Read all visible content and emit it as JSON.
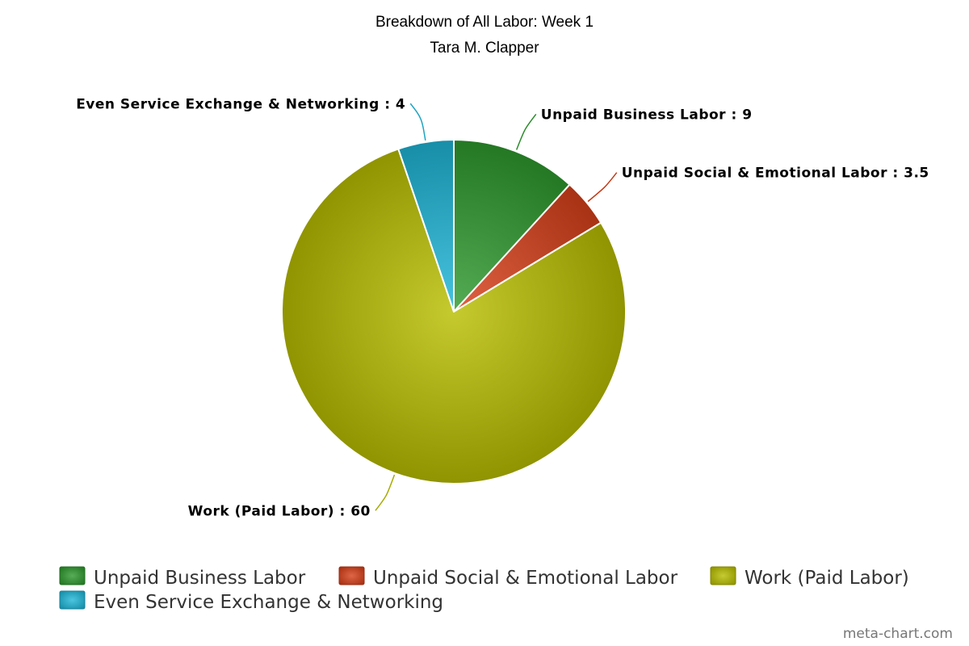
{
  "chart_data": {
    "type": "pie",
    "title": "Breakdown of All Labor: Week 1",
    "subtitle": "Tara M. Clapper",
    "label_separator": " : ",
    "slices": [
      {
        "name": "Unpaid Business Labor",
        "value": 9,
        "color": "#2e9a2e"
      },
      {
        "name": "Unpaid Social & Emotional Labor",
        "value": 3.5,
        "color": "#d8401a"
      },
      {
        "name": "Work (Paid Labor)",
        "value": 60,
        "color": "#b8be00"
      },
      {
        "name": "Even Service Exchange & Networking",
        "value": 4,
        "color": "#1fb6d8"
      }
    ],
    "legend_position": "bottom-left",
    "credit": "meta-chart.com"
  }
}
